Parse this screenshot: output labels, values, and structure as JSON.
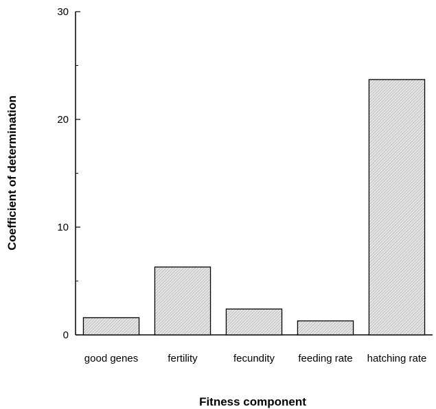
{
  "chart_data": {
    "type": "bar",
    "categories": [
      "good genes",
      "fertility",
      "fecundity",
      "feeding rate",
      "hatching rate"
    ],
    "values": [
      1.6,
      6.3,
      2.4,
      1.3,
      23.7
    ],
    "xlabel": "Fitness component",
    "ylabel": "Coefficient of determination",
    "ylim": [
      0,
      30
    ],
    "yticks": [
      0,
      10,
      20,
      30
    ],
    "grid": false,
    "legend": "none",
    "bar_fill": "#d9d9d9"
  }
}
